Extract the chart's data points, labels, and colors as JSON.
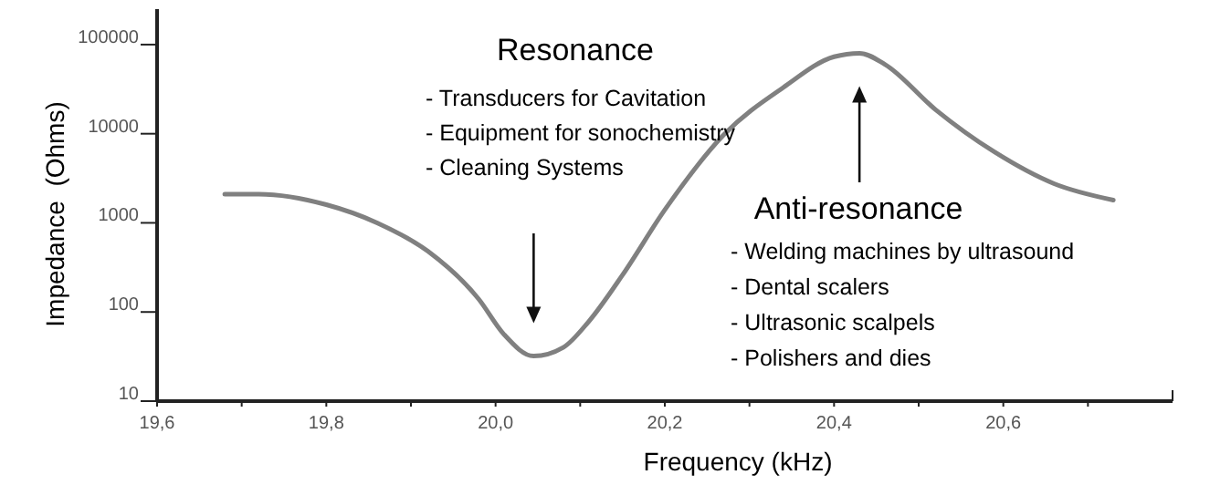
{
  "chart_data": {
    "type": "line",
    "xlabel": "Frequency (kHz)",
    "ylabel": "Impedance  (Ohms)",
    "log": true,
    "x": [
      19.68,
      19.72,
      19.8,
      19.86,
      19.92,
      19.98,
      20.01,
      20.045,
      20.08,
      20.11,
      20.15,
      20.2,
      20.27,
      20.34,
      20.4,
      20.43,
      20.46,
      20.52,
      20.59,
      20.66,
      20.73
    ],
    "series": [
      {
        "color": "#808080",
        "values": [
          2100,
          2100,
          1600,
          1000,
          480,
          140,
          56,
          32,
          40,
          78,
          260,
          1400,
          9800,
          33000,
          73000,
          80000,
          60000,
          18600,
          6200,
          2750,
          1800
        ]
      }
    ],
    "xlim": [
      19.6,
      20.8
    ],
    "xticks": [
      {
        "value": 19.6,
        "label": "19,6"
      },
      {
        "value": 19.7,
        "label": null
      },
      {
        "value": 19.8,
        "label": "19,8"
      },
      {
        "value": 19.9,
        "label": null
      },
      {
        "value": 20.0,
        "label": "20,0"
      },
      {
        "value": 20.1,
        "label": null
      },
      {
        "value": 20.2,
        "label": "20,2"
      },
      {
        "value": 20.3,
        "label": null
      },
      {
        "value": 20.4,
        "label": "20,4"
      },
      {
        "value": 20.5,
        "label": null
      },
      {
        "value": 20.6,
        "label": "20,6"
      },
      {
        "value": 20.7,
        "label": null
      },
      {
        "value": 20.8,
        "label": null
      }
    ],
    "ylim": [
      10,
      250000
    ],
    "yticks": [
      10,
      100,
      1000,
      10000,
      100000
    ],
    "grid": false,
    "marker": "none",
    "line_style": "solid",
    "annotations": [
      "Resonance",
      "- Transducers for Cavitation",
      "- Equipment for sonochemistry",
      "- Cleaning Systems",
      "Anti-resonance",
      "- Welding machines by ultrasound",
      "- Dental scalers",
      "- Ultrasonic scalpels",
      "- Polishers and dies"
    ]
  }
}
